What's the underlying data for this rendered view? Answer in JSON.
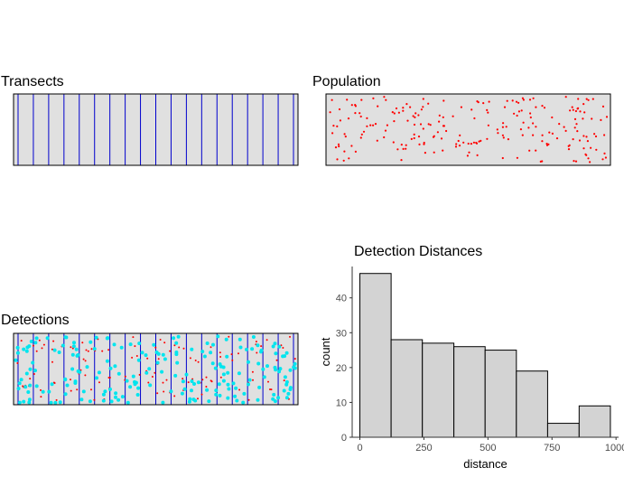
{
  "panels": {
    "transects_title": "Transects",
    "population_title": "Population",
    "detections_title": "Detections"
  },
  "colors": {
    "panel_fill": "#e0e0e0",
    "transect_line": "#0000cd",
    "population_point": "#ff0000",
    "detection_point": "#00e5ee",
    "histogram_fill": "#d3d3d3"
  },
  "transects": {
    "count": 19
  },
  "chart_data": {
    "type": "bar",
    "title": "Detection Distances",
    "xlabel": "distance",
    "ylabel": "count",
    "bin_edges": [
      0,
      122,
      244,
      367,
      489,
      611,
      733,
      856,
      978
    ],
    "values": [
      47,
      28,
      27,
      26,
      25,
      19,
      4,
      9
    ],
    "xlim": [
      -30,
      1010
    ],
    "ylim": [
      0,
      49
    ],
    "x_ticks": [
      0,
      250,
      500,
      750,
      1000
    ],
    "y_ticks": [
      0,
      10,
      20,
      30,
      40
    ],
    "grid": false
  }
}
